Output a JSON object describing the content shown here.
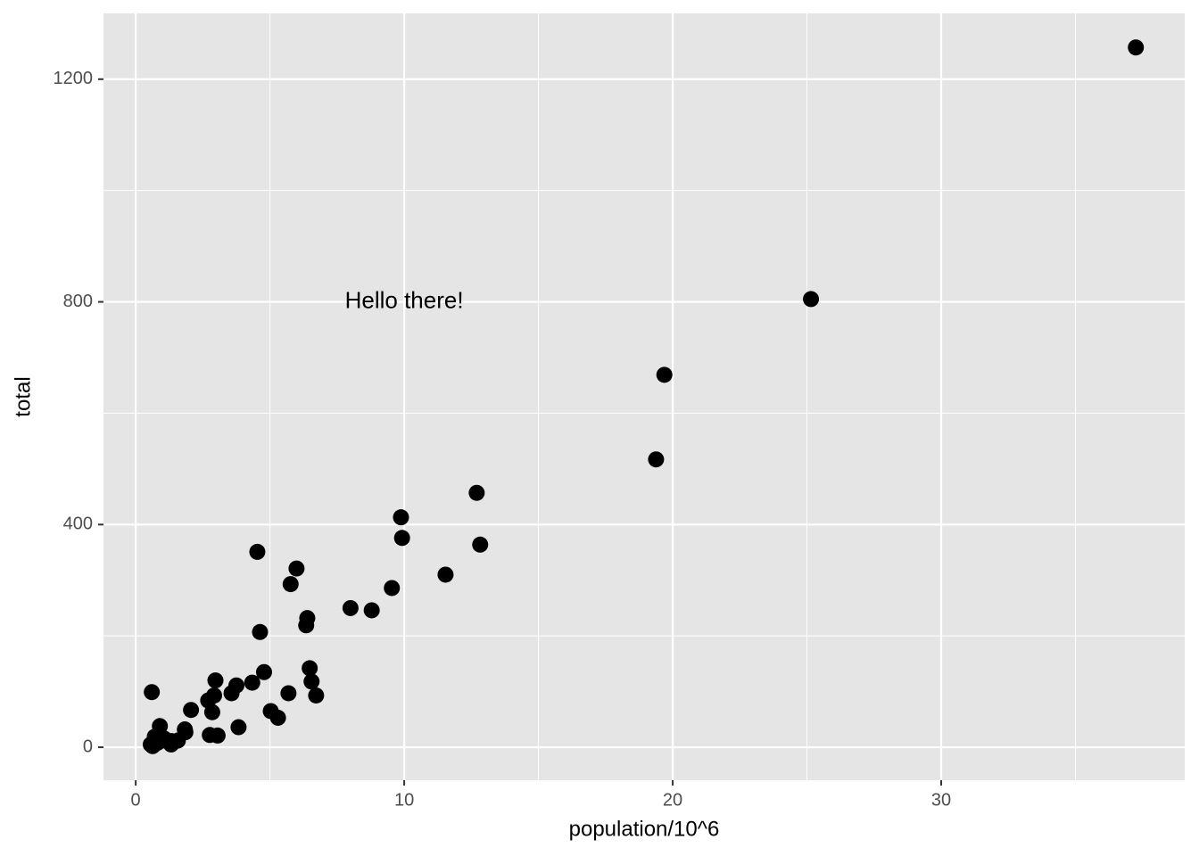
{
  "chart_data": {
    "type": "scatter",
    "x_label": "population/10^6",
    "y_label": "total",
    "x": [
      4.78,
      0.71,
      6.39,
      2.92,
      37.25,
      5.03,
      3.57,
      0.9,
      0.6,
      19.69,
      9.92,
      1.36,
      1.57,
      12.83,
      6.48,
      3.05,
      2.85,
      4.34,
      4.53,
      1.33,
      5.77,
      6.55,
      9.88,
      5.3,
      2.97,
      5.99,
      0.99,
      1.83,
      2.7,
      1.32,
      8.79,
      2.06,
      19.38,
      9.54,
      0.67,
      11.54,
      3.75,
      3.83,
      12.7,
      1.05,
      4.63,
      0.81,
      6.35,
      25.15,
      2.76,
      0.63,
      8.0,
      6.72,
      1.85,
      5.69,
      0.56
    ],
    "values": [
      135,
      19,
      232,
      93,
      1257,
      65,
      97,
      38,
      99,
      669,
      376,
      7,
      12,
      364,
      142,
      21,
      63,
      116,
      351,
      11,
      293,
      118,
      413,
      53,
      120,
      321,
      12,
      32,
      84,
      5,
      246,
      67,
      517,
      286,
      4,
      310,
      111,
      36,
      457,
      16,
      207,
      8,
      219,
      805,
      22,
      2,
      250,
      93,
      27,
      97,
      5
    ],
    "color": "#000000",
    "xlim": [
      -1.2,
      39.07
    ],
    "ylim": [
      -59.2,
      1318.2
    ],
    "xticks": [
      0,
      10,
      20,
      30
    ],
    "yticks": [
      0,
      400,
      800,
      1200
    ],
    "x_minor_ticks": [
      5,
      15,
      25,
      35
    ],
    "y_minor_ticks": [
      200,
      600,
      1000
    ],
    "grid": true,
    "annotations": [
      {
        "text": "Hello there!",
        "x": 10,
        "y": 800
      }
    ]
  }
}
